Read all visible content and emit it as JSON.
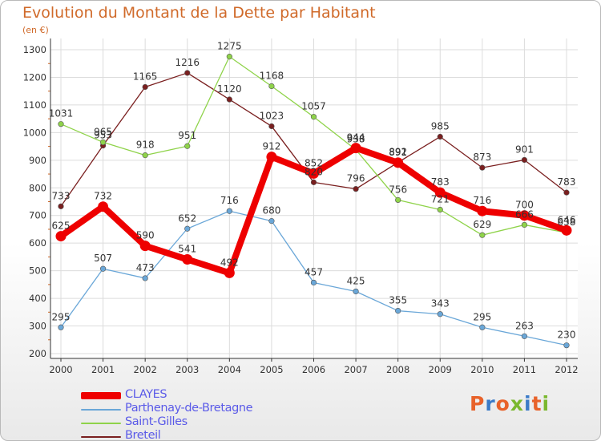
{
  "title": "Evolution du Montant de la Dette par Habitant",
  "unit_label": "(en €)",
  "logo": {
    "text": "Proxiti",
    "colors": [
      "#e8622a",
      "#3b7bc8",
      "#e8622a",
      "#7ab82e",
      "#3b7bc8",
      "#e8622a",
      "#7ab82e"
    ]
  },
  "chart_data": {
    "type": "line",
    "title": "Evolution du Montant de la Dette par Habitant",
    "ylabel": "(en €)",
    "xlabel": "",
    "x": [
      "2000",
      "2001",
      "2002",
      "2003",
      "2004",
      "2005",
      "2006",
      "2007",
      "2008",
      "2009",
      "2010",
      "2011",
      "2012"
    ],
    "ylim": [
      200,
      1300
    ],
    "yticks": [
      "200",
      "300",
      "400",
      "500",
      "600",
      "700",
      "800",
      "900",
      "1000",
      "1100",
      "1200",
      "1300"
    ],
    "grid": true,
    "legend_position": "bottom-left",
    "series": [
      {
        "name": "Breteil",
        "color": "#7a1f1f",
        "values": [
          733,
          953,
          1165,
          1216,
          1120,
          1023,
          820,
          796,
          892,
          985,
          873,
          901,
          783
        ]
      },
      {
        "name": "Saint-Gilles",
        "color": "#8fd34a",
        "values": [
          1031,
          965,
          918,
          951,
          1275,
          1168,
          1057,
          938,
          756,
          721,
          629,
          666,
          638
        ]
      },
      {
        "name": "Parthenay-de-Bretagne",
        "color": "#6aa7d8",
        "values": [
          295,
          507,
          473,
          652,
          716,
          680,
          457,
          425,
          355,
          343,
          295,
          263,
          230
        ]
      },
      {
        "name": "CLAYES",
        "color": "#ee0000",
        "values": [
          625,
          732,
          590,
          541,
          492,
          912,
          852,
          944,
          891,
          783,
          716,
          700,
          646
        ]
      }
    ]
  }
}
